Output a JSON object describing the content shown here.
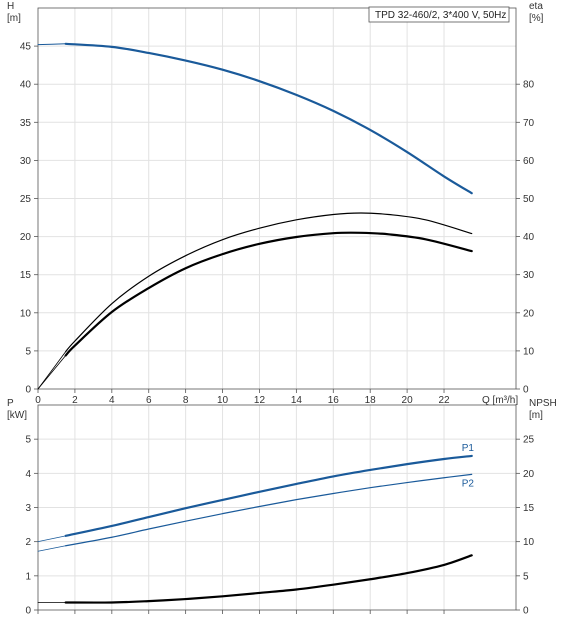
{
  "chart_data": [
    {
      "type": "line",
      "panel": "head-efficiency",
      "title": "TPD 32-460/2, 3*400 V, 50Hz",
      "y_left": {
        "name": "H",
        "unit": "[m]",
        "ylim": [
          0,
          50
        ],
        "ticks": [
          0,
          5,
          10,
          15,
          20,
          25,
          30,
          35,
          40,
          45
        ]
      },
      "y_right": {
        "name": "eta",
        "unit": "[%]",
        "ylim": [
          0,
          100
        ],
        "ticks": [
          0,
          10,
          20,
          30,
          40,
          50,
          60,
          70,
          80
        ]
      },
      "x": {
        "name": "Q",
        "unit": "[m³/h]",
        "xlim": [
          0,
          24
        ],
        "ticks": [
          0,
          2,
          4,
          6,
          8,
          10,
          12,
          14,
          16,
          18,
          20,
          22
        ],
        "tick_labels": [
          "0",
          "2",
          "4",
          "6",
          "8",
          "10",
          "12",
          "14",
          "16",
          "18",
          "20",
          "22"
        ]
      },
      "grid": true,
      "series": [
        {
          "key": "head_ext",
          "axis": "left",
          "color": "#1a5a9a",
          "width": 1,
          "x": [
            0,
            1.5
          ],
          "y": [
            45.2,
            45.3
          ]
        },
        {
          "key": "head",
          "axis": "left",
          "color": "#1a5a9a",
          "width": 2.2,
          "x": [
            1.5,
            4,
            6,
            8,
            10,
            12,
            14,
            16,
            18,
            20,
            22,
            23.5
          ],
          "y": [
            45.3,
            44.9,
            44.1,
            43.1,
            41.9,
            40.4,
            38.6,
            36.5,
            34.0,
            31.1,
            27.9,
            25.7
          ]
        },
        {
          "key": "eta_ext",
          "axis": "right",
          "color": "#000000",
          "width": 0.8,
          "x": [
            0,
            1.5
          ],
          "y": [
            0,
            8.8
          ]
        },
        {
          "key": "eta",
          "axis": "right",
          "color": "#000000",
          "width": 2.2,
          "x": [
            1.5,
            2,
            4,
            6,
            8,
            10,
            12,
            14,
            16,
            17.5,
            19,
            21,
            23.5
          ],
          "y": [
            8.8,
            11.4,
            20.2,
            26.5,
            31.7,
            35.4,
            38.1,
            39.9,
            40.9,
            41.0,
            40.6,
            39.3,
            36.2
          ]
        },
        {
          "key": "eta_p1_ext",
          "axis": "right",
          "color": "#000000",
          "width": 0.8,
          "x": [
            0,
            1.5
          ],
          "y": [
            0,
            9.8
          ]
        },
        {
          "key": "eta_p1",
          "axis": "right",
          "color": "#000000",
          "width": 1.2,
          "x": [
            1.5,
            2,
            4,
            6,
            8,
            10,
            12,
            14,
            16,
            17.5,
            19,
            21,
            23.5
          ],
          "y": [
            9.8,
            12.6,
            22.4,
            29.6,
            35.0,
            39.2,
            42.2,
            44.4,
            45.8,
            46.2,
            45.8,
            44.4,
            40.8
          ]
        }
      ]
    },
    {
      "type": "line",
      "panel": "power-npsh",
      "y_left": {
        "name": "P",
        "unit": "[kW]",
        "ylim": [
          0,
          6
        ],
        "ticks": [
          0,
          1,
          2,
          3,
          4,
          5
        ]
      },
      "y_right": {
        "name": "NPSH",
        "unit": "[m]",
        "ylim": [
          0,
          30
        ],
        "ticks": [
          0,
          5,
          10,
          15,
          20,
          25
        ]
      },
      "x": {
        "xlim": [
          0,
          24
        ],
        "ticks": [
          0,
          2,
          4,
          6,
          8,
          10,
          12,
          14,
          16,
          18,
          20,
          22
        ]
      },
      "grid": true,
      "series": [
        {
          "key": "p1_ext",
          "axis": "left",
          "color": "#1a5a9a",
          "width": 0.8,
          "x": [
            0,
            1.5
          ],
          "y": [
            2.0,
            2.17
          ]
        },
        {
          "key": "p1",
          "name": "P1",
          "axis": "left",
          "color": "#1a5a9a",
          "width": 2.2,
          "x": [
            1.5,
            4,
            6,
            8,
            10,
            12,
            14,
            16,
            18,
            20,
            22,
            23.5
          ],
          "y": [
            2.17,
            2.46,
            2.72,
            2.98,
            3.22,
            3.46,
            3.69,
            3.91,
            4.1,
            4.27,
            4.42,
            4.51
          ]
        },
        {
          "key": "p2_ext",
          "axis": "left",
          "color": "#1a5a9a",
          "width": 0.8,
          "x": [
            0,
            1.5
          ],
          "y": [
            1.72,
            1.88
          ]
        },
        {
          "key": "p2",
          "name": "P2",
          "axis": "left",
          "color": "#1a5a9a",
          "width": 1.2,
          "x": [
            1.5,
            4,
            6,
            8,
            10,
            12,
            14,
            16,
            18,
            20,
            22,
            23.5
          ],
          "y": [
            1.88,
            2.13,
            2.37,
            2.6,
            2.82,
            3.03,
            3.23,
            3.41,
            3.58,
            3.73,
            3.87,
            3.97
          ]
        },
        {
          "key": "npsh_ext",
          "axis": "right",
          "color": "#000000",
          "width": 0.8,
          "x": [
            0,
            1.5
          ],
          "y": [
            1.1,
            1.1
          ]
        },
        {
          "key": "npsh",
          "axis": "right",
          "color": "#000000",
          "width": 2.2,
          "x": [
            1.5,
            4,
            6,
            8,
            10,
            12,
            14,
            16,
            18,
            20,
            22,
            23.5
          ],
          "y": [
            1.1,
            1.1,
            1.3,
            1.6,
            2.0,
            2.5,
            3.0,
            3.7,
            4.5,
            5.4,
            6.6,
            8.0
          ]
        }
      ]
    }
  ]
}
